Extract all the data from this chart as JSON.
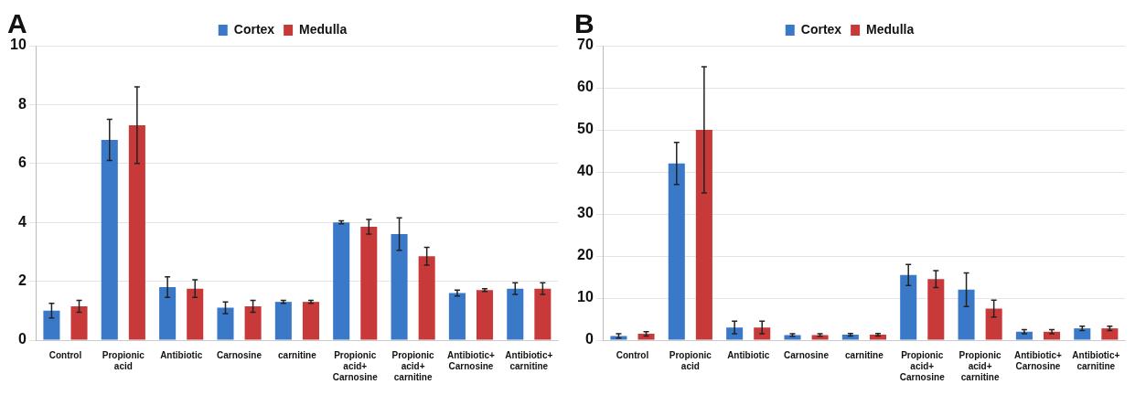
{
  "chart_data": [
    {
      "type": "bar",
      "title": "A",
      "categories": [
        "Control",
        "Propionic acid",
        "Antibiotic",
        "Carnosine",
        "carnitine",
        "Propionic acid+ Carnosine",
        "Propionic acid+ carnitine",
        "Antibiotic+ Carnosine",
        "Antibiotic+ carnitine"
      ],
      "ylim": [
        0,
        10
      ],
      "yticks": [
        0,
        2,
        4,
        6,
        8,
        10
      ],
      "grid": "y",
      "legend": "top",
      "series": [
        {
          "name": "Cortex",
          "color": "#3a78c8",
          "values": [
            1.0,
            6.8,
            1.8,
            1.1,
            1.3,
            4.0,
            3.6,
            1.6,
            1.75
          ],
          "errors": [
            0.25,
            0.7,
            0.35,
            0.2,
            0.05,
            0.05,
            0.55,
            0.1,
            0.2
          ]
        },
        {
          "name": "Medulla",
          "color": "#c83a3a",
          "values": [
            1.15,
            7.3,
            1.75,
            1.15,
            1.3,
            3.85,
            2.85,
            1.7,
            1.75
          ],
          "errors": [
            0.2,
            1.3,
            0.3,
            0.2,
            0.05,
            0.25,
            0.3,
            0.05,
            0.2
          ]
        }
      ]
    },
    {
      "type": "bar",
      "title": "B",
      "categories": [
        "Control",
        "Propionic acid",
        "Antibiotic",
        "Carnosine",
        "carnitine",
        "Propionic acid+ Carnosine",
        "Propionic acid+ carnitine",
        "Antibiotic+ Carnosine",
        "Antibiotic+ carnitine"
      ],
      "ylim": [
        0,
        70
      ],
      "yticks": [
        0,
        10,
        20,
        30,
        40,
        50,
        60,
        70
      ],
      "grid": "y",
      "legend": "top",
      "series": [
        {
          "name": "Cortex",
          "color": "#3a78c8",
          "values": [
            1,
            42,
            3,
            1.2,
            1.3,
            15.5,
            12,
            2,
            2.8
          ],
          "errors": [
            0.5,
            5,
            1.5,
            0.3,
            0.3,
            2.5,
            4,
            0.5,
            0.5
          ]
        },
        {
          "name": "Medulla",
          "color": "#c83a3a",
          "values": [
            1.5,
            50,
            3,
            1.2,
            1.3,
            14.5,
            7.5,
            2,
            2.8
          ],
          "errors": [
            0.5,
            15,
            1.5,
            0.3,
            0.3,
            2,
            2,
            0.5,
            0.5
          ]
        }
      ]
    }
  ]
}
